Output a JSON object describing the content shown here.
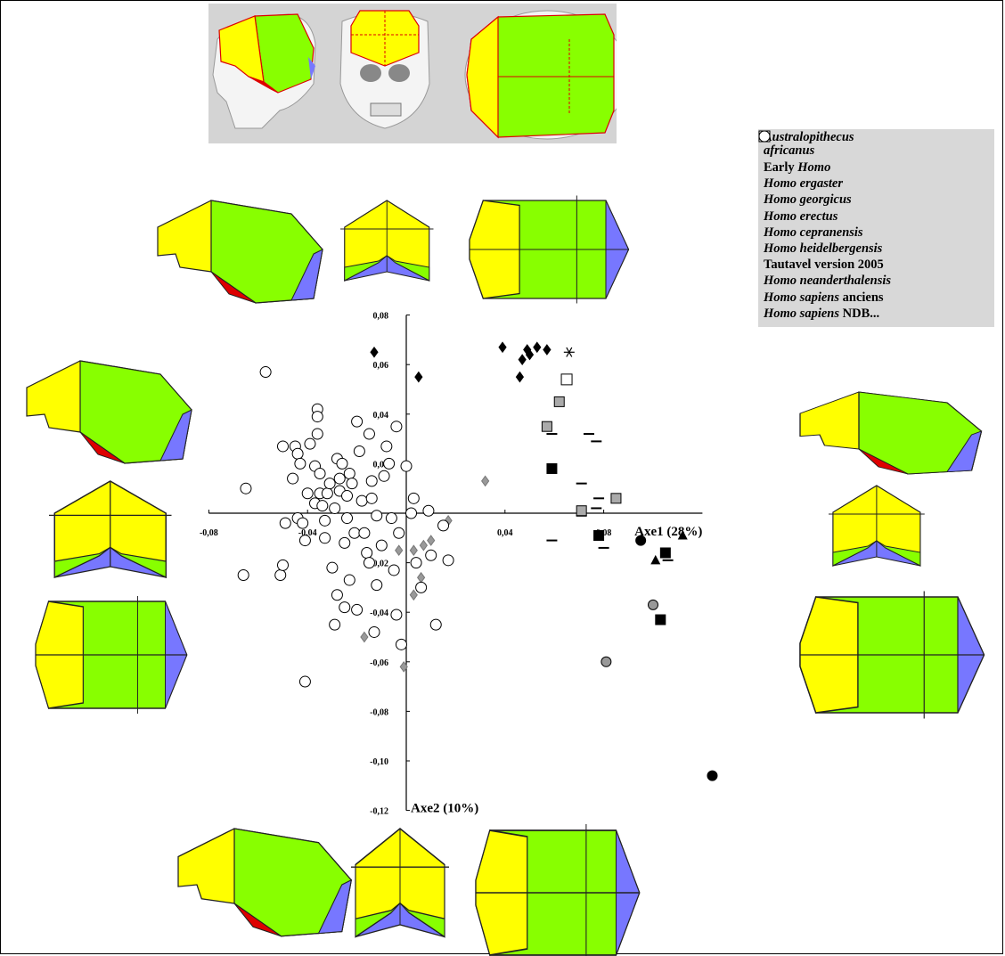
{
  "chart_data": {
    "type": "scatter",
    "xlabel": "Axe1 (28%)",
    "ylabel": "Axe2 (10%)",
    "xlim": [
      -0.08,
      0.12
    ],
    "ylim": [
      -0.12,
      0.08
    ],
    "x_ticks": [
      {
        "v": -0.08,
        "t": "-0,08"
      },
      {
        "v": -0.04,
        "t": "-0,04"
      },
      {
        "v": 0.04,
        "t": "0,04"
      },
      {
        "v": 0.08,
        "t": "0,08"
      }
    ],
    "y_ticks": [
      {
        "v": 0.08,
        "t": "0,08"
      },
      {
        "v": 0.06,
        "t": "0,06"
      },
      {
        "v": 0.04,
        "t": "0,04"
      },
      {
        "v": 0.02,
        "t": "0,02"
      },
      {
        "v": -0.02,
        "t": "-0,02"
      },
      {
        "v": -0.04,
        "t": "-0,04"
      },
      {
        "v": -0.06,
        "t": "-0,06"
      },
      {
        "v": -0.08,
        "t": "-0,08"
      },
      {
        "v": -0.1,
        "t": "-0,10"
      },
      {
        "v": -0.12,
        "t": "-0,12"
      }
    ],
    "legend_position": "top-right",
    "series": [
      {
        "name_main": "Australopithecus",
        "name_rest": "africanus",
        "symbol": "circle",
        "color": "#000000",
        "points": [
          [
            0.095,
            -0.011
          ],
          [
            0.124,
            -0.106
          ]
        ]
      },
      {
        "name_main": "Early ",
        "name_rest": "Homo",
        "symbol": "circle",
        "color": "#999999",
        "points": [
          [
            0.1,
            -0.037
          ],
          [
            0.081,
            -0.06
          ]
        ]
      },
      {
        "name_main": "Homo ergaster",
        "name_rest": "",
        "symbol": "square",
        "color": "#000000",
        "points": [
          [
            0.059,
            0.018
          ],
          [
            0.078,
            -0.009
          ],
          [
            0.105,
            -0.016
          ],
          [
            0.103,
            -0.043
          ]
        ]
      },
      {
        "name_main": "Homo georgicus",
        "name_rest": "",
        "symbol": "triangle",
        "color": "#000000",
        "points": [
          [
            0.112,
            -0.009
          ],
          [
            0.101,
            -0.019
          ]
        ]
      },
      {
        "name_main": "Homo erectus",
        "name_rest": "",
        "symbol": "dash",
        "color": "#000000",
        "points": [
          [
            0.059,
            0.032
          ],
          [
            0.074,
            0.032
          ],
          [
            0.077,
            0.029
          ],
          [
            0.071,
            0.012
          ],
          [
            0.078,
            0.006
          ],
          [
            0.077,
            0.002
          ],
          [
            0.071,
            -0.001
          ],
          [
            0.059,
            -0.011
          ],
          [
            0.08,
            -0.014
          ],
          [
            0.106,
            -0.019
          ]
        ]
      },
      {
        "name_main": "Homo cepranensis",
        "name_rest": "",
        "symbol": "asterisk",
        "color": "#000000",
        "points": [
          [
            0.066,
            0.065
          ]
        ]
      },
      {
        "name_main": "Homo heidelbergensis",
        "name_rest": "",
        "symbol": "square",
        "color": "#aaaaaa",
        "points": [
          [
            0.057,
            0.035
          ],
          [
            0.062,
            0.045
          ],
          [
            0.085,
            0.006
          ],
          [
            0.071,
            0.001
          ]
        ]
      },
      {
        "name_main": "Tautavel",
        "name_rest": " version 2005",
        "symbol": "square-open",
        "color": "#ffffff",
        "points": [
          [
            0.065,
            0.054
          ]
        ]
      },
      {
        "name_main": "Homo neanderthalensis",
        "name_rest": "",
        "symbol": "diamond",
        "color": "#000000",
        "points": [
          [
            -0.013,
            0.065
          ],
          [
            0.005,
            0.055
          ],
          [
            0.039,
            0.067
          ],
          [
            0.049,
            0.066
          ],
          [
            0.053,
            0.067
          ],
          [
            0.057,
            0.066
          ],
          [
            0.05,
            0.064
          ],
          [
            0.047,
            0.062
          ],
          [
            0.046,
            0.055
          ]
        ]
      },
      {
        "name_main": "Homo sapiens",
        "name_rest": " anciens",
        "symbol": "diamond",
        "color": "#999999",
        "points": [
          [
            0.032,
            0.013
          ],
          [
            0.017,
            -0.003
          ],
          [
            0.01,
            -0.011
          ],
          [
            0.007,
            -0.013
          ],
          [
            -0.003,
            -0.015
          ],
          [
            0.006,
            -0.026
          ],
          [
            0.003,
            -0.033
          ],
          [
            -0.017,
            -0.05
          ],
          [
            -0.001,
            -0.062
          ],
          [
            0.003,
            -0.015
          ]
        ]
      },
      {
        "name_main": "Homo sapiens",
        "name_rest": " NDB...",
        "symbol": "circle-open",
        "color": "#ffffff",
        "points": [
          [
            -0.057,
            0.057
          ],
          [
            -0.065,
            0.01
          ],
          [
            -0.066,
            -0.025
          ],
          [
            -0.051,
            -0.025
          ],
          [
            -0.05,
            -0.021
          ],
          [
            -0.041,
            -0.068
          ],
          [
            -0.05,
            0.027
          ],
          [
            -0.049,
            -0.004
          ],
          [
            -0.046,
            0.014
          ],
          [
            -0.045,
            0.027
          ],
          [
            -0.044,
            0.024
          ],
          [
            -0.044,
            -0.002
          ],
          [
            -0.043,
            0.02
          ],
          [
            -0.042,
            -0.004
          ],
          [
            -0.041,
            -0.011
          ],
          [
            -0.04,
            0.008
          ],
          [
            -0.039,
            0.028
          ],
          [
            -0.037,
            0.004
          ],
          [
            -0.037,
            0.019
          ],
          [
            -0.036,
            0.042
          ],
          [
            -0.036,
            0.039
          ],
          [
            -0.036,
            0.032
          ],
          [
            -0.035,
            0.016
          ],
          [
            -0.035,
            0.008
          ],
          [
            -0.034,
            0.003
          ],
          [
            -0.033,
            -0.003
          ],
          [
            -0.033,
            -0.01
          ],
          [
            -0.032,
            0.008
          ],
          [
            -0.031,
            0.012
          ],
          [
            -0.03,
            -0.022
          ],
          [
            -0.029,
            -0.045
          ],
          [
            -0.029,
            0.002
          ],
          [
            -0.028,
            0.022
          ],
          [
            -0.027,
            0.014
          ],
          [
            -0.027,
            0.009
          ],
          [
            -0.026,
            0.02
          ],
          [
            -0.025,
            -0.012
          ],
          [
            -0.025,
            -0.038
          ],
          [
            -0.024,
            0.007
          ],
          [
            -0.024,
            -0.002
          ],
          [
            -0.023,
            0.016
          ],
          [
            -0.022,
            0.012
          ],
          [
            -0.021,
            -0.008
          ],
          [
            -0.02,
            0.037
          ],
          [
            -0.02,
            -0.039
          ],
          [
            -0.019,
            0.025
          ],
          [
            -0.018,
            0.005
          ],
          [
            -0.017,
            -0.008
          ],
          [
            -0.016,
            -0.016
          ],
          [
            -0.015,
            0.032
          ],
          [
            -0.015,
            -0.02
          ],
          [
            -0.014,
            0.013
          ],
          [
            -0.014,
            0.006
          ],
          [
            -0.013,
            -0.048
          ],
          [
            -0.012,
            -0.029
          ],
          [
            -0.012,
            -0.001
          ],
          [
            -0.01,
            -0.013
          ],
          [
            -0.009,
            0.015
          ],
          [
            -0.008,
            0.027
          ],
          [
            -0.007,
            0.02
          ],
          [
            -0.006,
            -0.002
          ],
          [
            -0.005,
            -0.023
          ],
          [
            -0.004,
            0.035
          ],
          [
            -0.004,
            -0.041
          ],
          [
            -0.003,
            -0.008
          ],
          [
            -0.002,
            -0.053
          ],
          [
            0.0,
            0.019
          ],
          [
            0.002,
            0.0
          ],
          [
            0.003,
            0.006
          ],
          [
            0.004,
            -0.02
          ],
          [
            0.006,
            -0.03
          ],
          [
            0.009,
            0.001
          ],
          [
            0.01,
            -0.017
          ],
          [
            0.012,
            -0.045
          ],
          [
            0.015,
            -0.005
          ],
          [
            0.017,
            -0.019
          ],
          [
            -0.023,
            -0.027
          ],
          [
            -0.028,
            -0.033
          ]
        ]
      }
    ]
  },
  "reference_panel_icon": "skull-reference-diagram",
  "colors": {
    "yellow": "#ffff00",
    "green": "#88ff00",
    "blue": "#7777ff",
    "red": "#dd0000",
    "panel": "#d4d4d4",
    "legend": "#d8d8d8"
  }
}
